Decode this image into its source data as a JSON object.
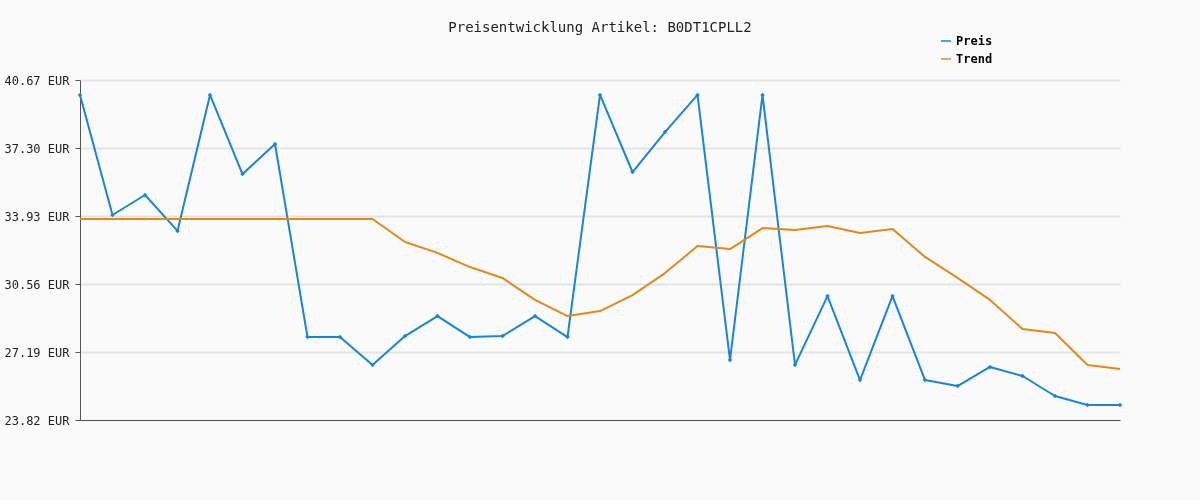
{
  "chart_data": {
    "type": "line",
    "title": "Preisentwicklung Artikel: B0DT1CPLL2",
    "categories": [
      null,
      null,
      null,
      null,
      null,
      null,
      null,
      null,
      null,
      null,
      null,
      null,
      null,
      null,
      null,
      null,
      null,
      null,
      null,
      null,
      null,
      null,
      null,
      null,
      null,
      null,
      null,
      null,
      null,
      null,
      null,
      null,
      null
    ],
    "series": [
      {
        "name": "Preis",
        "color": "#1a86d0",
        "marker": "diamond",
        "values": [
          39.93,
          33.98,
          34.97,
          33.19,
          39.93,
          36.01,
          37.5,
          27.93,
          27.93,
          26.55,
          27.98,
          28.97,
          27.93,
          27.98,
          28.97,
          27.93,
          39.93,
          36.11,
          38.09,
          39.93,
          26.79,
          39.93,
          26.55,
          29.96,
          25.8,
          29.96,
          25.8,
          25.5,
          26.45,
          26.0,
          25.01,
          24.56,
          24.56
        ]
      },
      {
        "name": "Trend",
        "color": "#e08a1e",
        "marker": "none",
        "values": [
          33.78,
          33.78,
          33.78,
          33.78,
          33.78,
          33.78,
          33.78,
          33.78,
          33.78,
          33.78,
          32.64,
          32.1,
          31.4,
          30.86,
          29.77,
          28.97,
          29.22,
          30.01,
          31.1,
          32.44,
          32.29,
          33.33,
          33.24,
          33.43,
          33.09,
          33.29,
          31.9,
          30.86,
          29.77,
          28.33,
          28.13,
          26.55,
          26.35
        ]
      }
    ],
    "ylim": [
      23.82,
      40.67
    ],
    "yticks": [
      {
        "value": 23.82,
        "label": "23.82 EUR"
      },
      {
        "value": 27.19,
        "label": "27.19 EUR"
      },
      {
        "value": 30.56,
        "label": "30.56 EUR"
      },
      {
        "value": 33.93,
        "label": "33.93 EUR"
      },
      {
        "value": 37.3,
        "label": "37.30 EUR"
      },
      {
        "value": 40.67,
        "label": "40.67 EUR"
      }
    ],
    "grid": "y",
    "legend": "top right"
  }
}
